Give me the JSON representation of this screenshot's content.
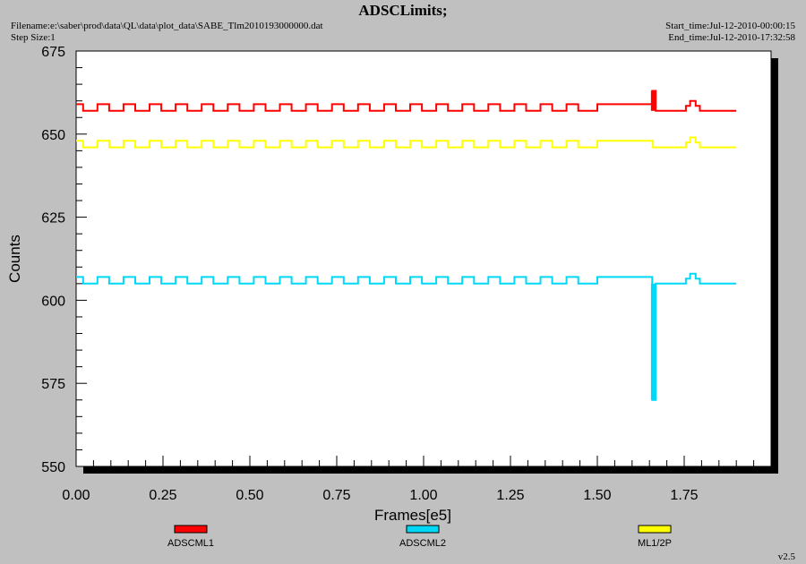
{
  "header": {
    "title": "ADSCLimits;",
    "filename": "Filename:e:\\saber\\prod\\data\\QL\\data\\plot_data\\SABE_Tlm2010193000000.dat",
    "step_size": "Step Size:1",
    "start_time": "Start_time:Jul-12-2010-00:00:15",
    "end_time": "End_time:Jul-12-2010-17:32:58"
  },
  "version": "v2.5",
  "chart_data": {
    "type": "line",
    "xlabel": "Frames[e5]",
    "ylabel": "Counts",
    "xlim": [
      0,
      2.0
    ],
    "ylim": [
      550,
      675
    ],
    "xticks": [
      "0.00",
      "0.25",
      "0.50",
      "0.75",
      "1.00",
      "1.25",
      "1.50",
      "1.75"
    ],
    "yticks": [
      "550",
      "575",
      "600",
      "625",
      "650",
      "675"
    ],
    "grid": false,
    "legend_position": "bottom",
    "series": [
      {
        "name": "ADSCML1",
        "color": "#ff0000",
        "baseline": 657,
        "step_high": 659,
        "step_period": 0.075,
        "x_end": 1.9,
        "features": [
          {
            "kind": "plateau",
            "x_start": 1.5,
            "x_end": 1.65,
            "value": 659
          },
          {
            "kind": "spike",
            "x": 1.662,
            "value": 663
          },
          {
            "kind": "bump",
            "x": 1.775,
            "value": 660
          }
        ]
      },
      {
        "name": "ADSCML2",
        "color": "#00d8f8",
        "baseline": 605,
        "step_high": 607,
        "step_period": 0.075,
        "x_end": 1.9,
        "features": [
          {
            "kind": "plateau",
            "x_start": 1.5,
            "x_end": 1.65,
            "value": 607
          },
          {
            "kind": "spike",
            "x": 1.662,
            "value": 570
          },
          {
            "kind": "bump",
            "x": 1.775,
            "value": 608
          }
        ]
      },
      {
        "name": "ML1/2P",
        "color": "#ffff00",
        "baseline": 646,
        "step_high": 648,
        "step_period": 0.075,
        "x_end": 1.9,
        "features": [
          {
            "kind": "plateau",
            "x_start": 1.5,
            "x_end": 1.65,
            "value": 648
          },
          {
            "kind": "bump",
            "x": 1.775,
            "value": 649
          }
        ]
      }
    ]
  }
}
